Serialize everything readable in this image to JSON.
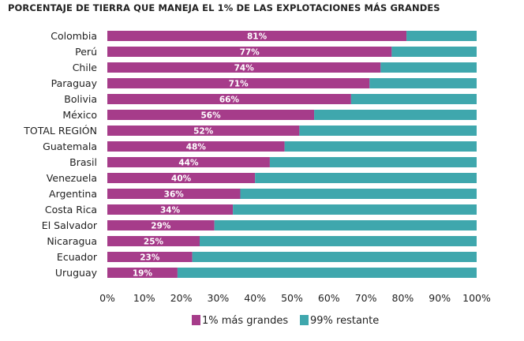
{
  "chart_data": {
    "type": "bar",
    "orientation": "horizontal",
    "stacked": true,
    "title": "PORCENTAJE DE TIERRA QUE MANEJA EL 1% DE LAS EXPLOTACIONES MÁS GRANDES",
    "categories": [
      "Colombia",
      "Perú",
      "Chile",
      "Paraguay",
      "Bolivia",
      "México",
      "TOTAL REGIÓN",
      "Guatemala",
      "Brasil",
      "Venezuela",
      "Argentina",
      "Costa Rica",
      "El Salvador",
      "Nicaragua",
      "Ecuador",
      "Uruguay"
    ],
    "series": [
      {
        "name": "1% más grandes",
        "color": "#a63c8a",
        "values": [
          81,
          77,
          74,
          71,
          66,
          56,
          52,
          48,
          44,
          40,
          36,
          34,
          29,
          25,
          23,
          19
        ],
        "labels": [
          "81%",
          "77%",
          "74%",
          "71%",
          "66%",
          "56%",
          "52%",
          "48%",
          "44%",
          "40%",
          "36%",
          "34%",
          "29%",
          "25%",
          "23%",
          "19%"
        ]
      },
      {
        "name": "99% restante",
        "color": "#3fa7ad",
        "values": [
          19,
          23,
          26,
          29,
          34,
          44,
          48,
          52,
          56,
          60,
          64,
          66,
          71,
          75,
          77,
          81
        ]
      }
    ],
    "xlim": [
      0,
      100
    ],
    "xticks": [
      "0%",
      "10%",
      "20%",
      "30%",
      "40%",
      "50%",
      "60%",
      "70%",
      "80%",
      "90%",
      "100%"
    ],
    "grid": false,
    "legend_position": "bottom"
  }
}
